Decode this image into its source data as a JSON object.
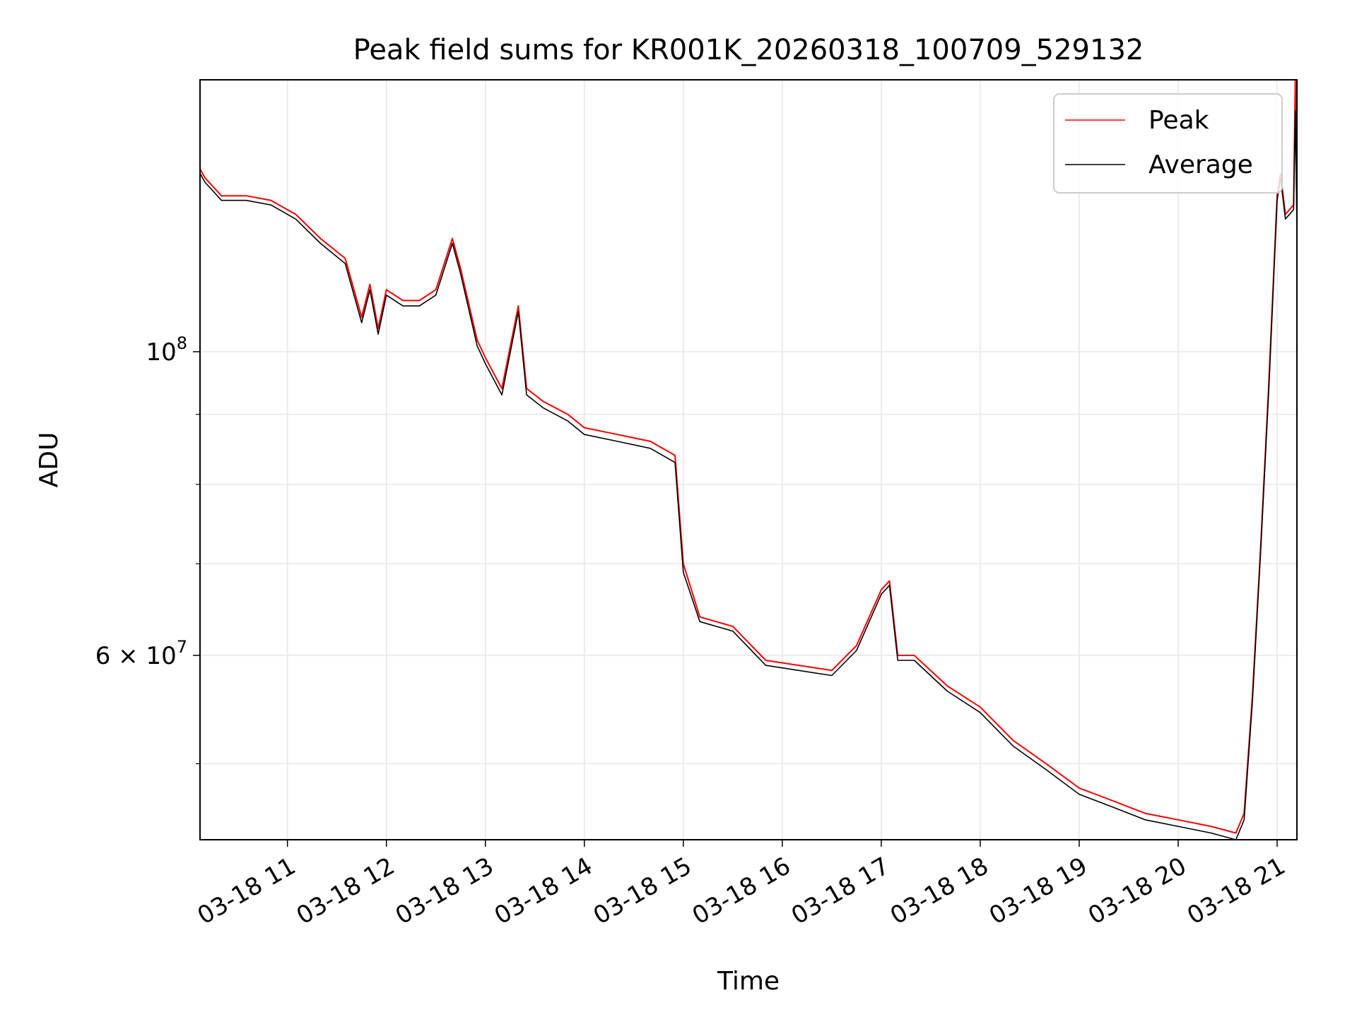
{
  "chart_data": {
    "type": "line",
    "title": "Peak field sums for KR001K_20260318_100709_529132",
    "xlabel": "Time",
    "ylabel": "ADU",
    "yscale": "log",
    "xlim": [
      "03-18 10:07",
      "03-18 21:12"
    ],
    "ylim": [
      44000000,
      158000000
    ],
    "grid": true,
    "legend": "top-right",
    "x_ticks": [
      "03-18 11",
      "03-18 12",
      "03-18 13",
      "03-18 14",
      "03-18 15",
      "03-18 16",
      "03-18 17",
      "03-18 18",
      "03-18 19",
      "03-18 20",
      "03-18 21"
    ],
    "y_ticks": [
      {
        "value": 100000000,
        "label": "10^8",
        "base": "10",
        "exp": "8"
      },
      {
        "value": 60000000,
        "label": "6×10^7",
        "base": "6 × 10",
        "exp": "7"
      }
    ],
    "series": [
      {
        "name": "Peak",
        "color": "#ff0000",
        "x": [
          "03-18 10:07",
          "03-18 10:10",
          "03-18 10:20",
          "03-18 10:35",
          "03-18 10:50",
          "03-18 11:05",
          "03-18 11:20",
          "03-18 11:35",
          "03-18 11:45",
          "03-18 11:50",
          "03-18 11:55",
          "03-18 12:00",
          "03-18 12:10",
          "03-18 12:20",
          "03-18 12:30",
          "03-18 12:40",
          "03-18 12:45",
          "03-18 12:55",
          "03-18 13:00",
          "03-18 13:10",
          "03-18 13:20",
          "03-18 13:25",
          "03-18 13:35",
          "03-18 13:50",
          "03-18 14:00",
          "03-18 14:20",
          "03-18 14:40",
          "03-18 14:55",
          "03-18 15:00",
          "03-18 15:10",
          "03-18 15:30",
          "03-18 15:50",
          "03-18 16:10",
          "03-18 16:30",
          "03-18 16:45",
          "03-18 17:00",
          "03-18 17:05",
          "03-18 17:10",
          "03-18 17:20",
          "03-18 17:40",
          "03-18 18:00",
          "03-18 18:20",
          "03-18 18:40",
          "03-18 19:00",
          "03-18 19:20",
          "03-18 19:40",
          "03-18 20:00",
          "03-18 20:20",
          "03-18 20:35",
          "03-18 20:40",
          "03-18 20:45",
          "03-18 20:50",
          "03-18 20:55",
          "03-18 21:00",
          "03-18 21:02",
          "03-18 21:05",
          "03-18 21:10",
          "03-18 21:11",
          "03-18 21:12"
        ],
        "y": [
          136000000,
          134000000,
          130000000,
          130000000,
          129000000,
          126000000,
          121000000,
          117000000,
          106000000,
          112000000,
          104000000,
          111000000,
          109000000,
          109000000,
          111000000,
          121000000,
          115000000,
          102000000,
          99000000,
          94000000,
          108000000,
          94000000,
          92000000,
          90000000,
          88000000,
          87000000,
          86000000,
          84000000,
          70000000,
          64000000,
          63000000,
          59500000,
          59000000,
          58500000,
          61000000,
          67000000,
          68000000,
          60000000,
          60000000,
          57000000,
          55000000,
          52000000,
          50000000,
          48000000,
          47000000,
          46000000,
          45500000,
          45000000,
          44500000,
          46000000,
          56000000,
          72000000,
          95000000,
          130000000,
          135000000,
          126000000,
          128000000,
          158000000,
          125000000
        ]
      },
      {
        "name": "Average",
        "color": "#000000",
        "x": [
          "03-18 10:07",
          "03-18 10:10",
          "03-18 10:20",
          "03-18 10:35",
          "03-18 10:50",
          "03-18 11:05",
          "03-18 11:20",
          "03-18 11:35",
          "03-18 11:45",
          "03-18 11:50",
          "03-18 11:55",
          "03-18 12:00",
          "03-18 12:10",
          "03-18 12:20",
          "03-18 12:30",
          "03-18 12:40",
          "03-18 12:45",
          "03-18 12:55",
          "03-18 13:00",
          "03-18 13:10",
          "03-18 13:20",
          "03-18 13:25",
          "03-18 13:35",
          "03-18 13:50",
          "03-18 14:00",
          "03-18 14:20",
          "03-18 14:40",
          "03-18 14:55",
          "03-18 15:00",
          "03-18 15:10",
          "03-18 15:30",
          "03-18 15:50",
          "03-18 16:10",
          "03-18 16:30",
          "03-18 16:45",
          "03-18 17:00",
          "03-18 17:05",
          "03-18 17:10",
          "03-18 17:20",
          "03-18 17:40",
          "03-18 18:00",
          "03-18 18:20",
          "03-18 18:40",
          "03-18 19:00",
          "03-18 19:20",
          "03-18 19:40",
          "03-18 20:00",
          "03-18 20:20",
          "03-18 20:35",
          "03-18 20:40",
          "03-18 20:45",
          "03-18 20:50",
          "03-18 20:55",
          "03-18 21:00",
          "03-18 21:02",
          "03-18 21:05",
          "03-18 21:10",
          "03-18 21:11",
          "03-18 21:12"
        ],
        "y": [
          135000000,
          133000000,
          129000000,
          129000000,
          128000000,
          125000000,
          120000000,
          116000000,
          105000000,
          111000000,
          103000000,
          110000000,
          108000000,
          108000000,
          110000000,
          120000000,
          114000000,
          101000000,
          98000000,
          93000000,
          107000000,
          93000000,
          91000000,
          89000000,
          87000000,
          86000000,
          85000000,
          83000000,
          69000000,
          63500000,
          62500000,
          59000000,
          58500000,
          58000000,
          60500000,
          66500000,
          67500000,
          59500000,
          59500000,
          56500000,
          54500000,
          51500000,
          49500000,
          47500000,
          46500000,
          45500000,
          45000000,
          44500000,
          44000000,
          45500000,
          55500000,
          71500000,
          94000000,
          129000000,
          134000000,
          125000000,
          127000000,
          150000000,
          124000000
        ]
      }
    ]
  }
}
